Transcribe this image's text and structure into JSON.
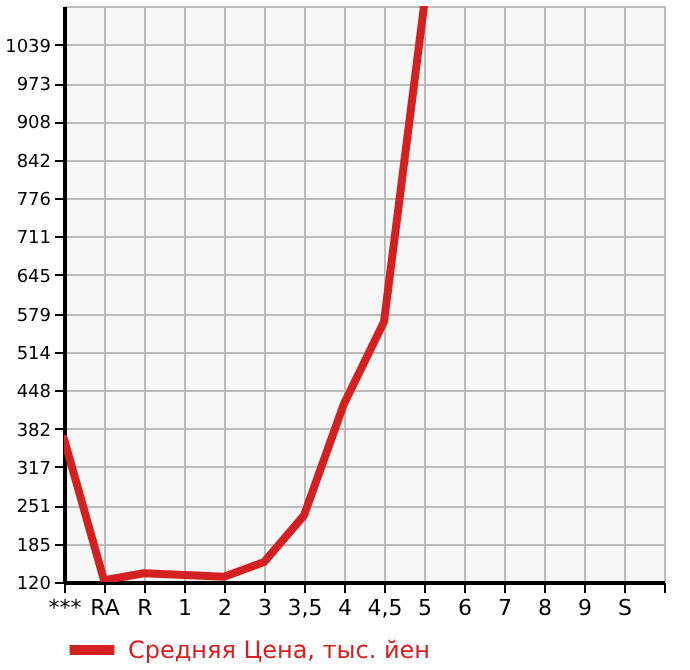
{
  "chart_data": {
    "type": "line",
    "categories": [
      "***",
      "RA",
      "R",
      "1",
      "2",
      "3",
      "3,5",
      "4",
      "4,5",
      "5",
      "6",
      "7",
      "8",
      "9",
      "S",
      null
    ],
    "series": [
      {
        "name": "Средняя Цена, тыс. йен",
        "color": "#d42020",
        "values": [
          365,
          123,
          135,
          132,
          129,
          154,
          234,
          425,
          565,
          1105,
          null,
          null,
          null,
          null,
          null,
          null
        ]
      }
    ],
    "ylim": [
      120,
      1105
    ],
    "yticks": [
      120,
      185,
      251,
      317,
      382,
      448,
      514,
      579,
      645,
      711,
      776,
      842,
      908,
      973,
      1039
    ],
    "grid": true,
    "legend": "bottom",
    "marker": "none",
    "line_style": "solid"
  }
}
